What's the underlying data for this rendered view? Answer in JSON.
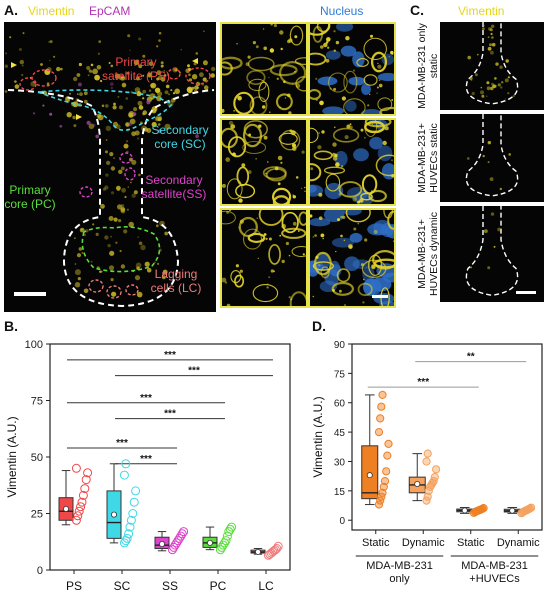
{
  "panels": {
    "A": {
      "label": "A.",
      "header_vimentin": "Vimentin",
      "header_epcam": "EpCAM",
      "header_nucleus": "Nucleus",
      "regions": {
        "ps": "Primary satellite (PS)",
        "sc": "Secondary core (SC)",
        "ss": "Secondary satellite(SS)",
        "pc": "Primary core (PC)",
        "lc": "Lagging cells (LC)"
      }
    },
    "B": {
      "label": "B."
    },
    "C": {
      "label": "C.",
      "header": "Vimentin",
      "rows": [
        "MDA-MB-231 only static",
        "MDA-MB-231+ HUVECs static",
        "MDA-MB-231+ HUVECs dynamic"
      ]
    },
    "D": {
      "label": "D."
    }
  },
  "colors": {
    "vimentin_yellow": "#e6d51c",
    "epcam_magenta": "#b035b0",
    "nucleus_blue": "#2e7bd6",
    "ps_red": "#f04848",
    "sc_cyan": "#3fd8e6",
    "ss_magenta": "#dd44cc",
    "pc_green": "#5ade3c",
    "lc_salmon": "#f07a7a",
    "orange_dark": "#ee7f22",
    "orange_light": "#f4a25e"
  },
  "chart_data": [
    {
      "id": "B",
      "type": "box",
      "ylabel": "Vimentin (A.U.)",
      "ylim": [
        0,
        100
      ],
      "yticks": [
        "0",
        "25",
        "50",
        "75",
        "100"
      ],
      "categories": [
        "PS",
        "SC",
        "SS",
        "PC",
        "LC"
      ],
      "boxes": [
        {
          "name": "PS",
          "q1": 22,
          "median": 26,
          "q3": 32,
          "whisker_low": 20,
          "whisker_high": 44,
          "mean": 27,
          "color": "#f04848",
          "points": [
            22,
            24,
            26,
            28,
            30,
            33,
            36,
            40,
            43,
            45
          ]
        },
        {
          "name": "SC",
          "q1": 14,
          "median": 21,
          "q3": 35,
          "whisker_low": 12,
          "whisker_high": 47,
          "mean": 24.5,
          "color": "#3fd8e6",
          "points": [
            12,
            13,
            14,
            16,
            19,
            22,
            25,
            30,
            35,
            42,
            47
          ]
        },
        {
          "name": "SS",
          "q1": 9.5,
          "median": 11,
          "q3": 14.5,
          "whisker_low": 8.5,
          "whisker_high": 17,
          "mean": 11.5,
          "color": "#dd44cc",
          "points": [
            9,
            10,
            11,
            12,
            13,
            14,
            15,
            16,
            17
          ]
        },
        {
          "name": "PC",
          "q1": 10,
          "median": 12,
          "q3": 14.5,
          "whisker_low": 9,
          "whisker_high": 19,
          "mean": 12,
          "color": "#5ade3c",
          "points": [
            9,
            10,
            11,
            12,
            13,
            15,
            17,
            18,
            19
          ]
        },
        {
          "name": "LC",
          "q1": 7.5,
          "median": 8,
          "q3": 8.8,
          "whisker_low": 7,
          "whisker_high": 9.5,
          "mean": 8,
          "color": "#f07a7a",
          "points": [
            6.5,
            7,
            7.5,
            8,
            8.5,
            9,
            9.5,
            10.5
          ]
        }
      ],
      "significance": [
        {
          "from": "PS",
          "to": "LC",
          "y": 93,
          "label": "***"
        },
        {
          "from": "SC",
          "to": "LC",
          "y": 86,
          "label": "***"
        },
        {
          "from": "PS",
          "to": "PC",
          "y": 74,
          "label": "***"
        },
        {
          "from": "SC",
          "to": "PC",
          "y": 67,
          "label": "***"
        },
        {
          "from": "PS",
          "to": "SS",
          "y": 54,
          "label": "***"
        },
        {
          "from": "SC",
          "to": "SS",
          "y": 47,
          "label": "***"
        }
      ]
    },
    {
      "id": "D",
      "type": "box",
      "ylabel": "Vimentin (A.U.)",
      "ylim": [
        -5,
        90
      ],
      "yticks": [
        "0",
        "15",
        "30",
        "45",
        "60",
        "75",
        "90"
      ],
      "categories": [
        "Static",
        "Dynamic",
        "Static",
        "Dynamic"
      ],
      "groups": [
        {
          "label": "MDA-MB-231 only"
        },
        {
          "label": "MDA-MB-231 +HUVECs"
        }
      ],
      "boxes": [
        {
          "name": "Static",
          "group": 0,
          "q1": 11,
          "median": 14,
          "q3": 38,
          "whisker_low": 8,
          "whisker_high": 64,
          "mean": 23,
          "color": "#ee7f22",
          "points": [
            8,
            10,
            12,
            14,
            17,
            20,
            25,
            33,
            39,
            45,
            52,
            58,
            64
          ]
        },
        {
          "name": "Dynamic",
          "group": 0,
          "q1": 14,
          "median": 18,
          "q3": 22,
          "whisker_low": 10,
          "whisker_high": 34,
          "mean": 18.5,
          "color": "#f4a25e",
          "points": [
            10,
            12,
            15,
            17,
            18,
            19,
            20,
            22,
            26,
            30,
            34
          ]
        },
        {
          "name": "Static",
          "group": 1,
          "q1": 4.3,
          "median": 5,
          "q3": 5.7,
          "whisker_low": 3.5,
          "whisker_high": 6.5,
          "mean": 5,
          "color": "#ee7f22",
          "points": [
            3.8,
            4.2,
            4.5,
            4.8,
            5,
            5.2,
            5.5,
            5.8,
            6.2
          ]
        },
        {
          "name": "Dynamic",
          "group": 1,
          "q1": 4.2,
          "median": 4.8,
          "q3": 5.6,
          "whisker_low": 3.5,
          "whisker_high": 6.5,
          "mean": 4.9,
          "color": "#f4a25e",
          "points": [
            3.6,
            4,
            4.4,
            4.8,
            5,
            5.3,
            5.6,
            6,
            6.4
          ]
        }
      ],
      "significance": [
        {
          "from": 0,
          "to": 2,
          "y": 68,
          "label": "***"
        },
        {
          "from": 1,
          "to": 3,
          "y": 81,
          "label": "**"
        }
      ]
    }
  ]
}
